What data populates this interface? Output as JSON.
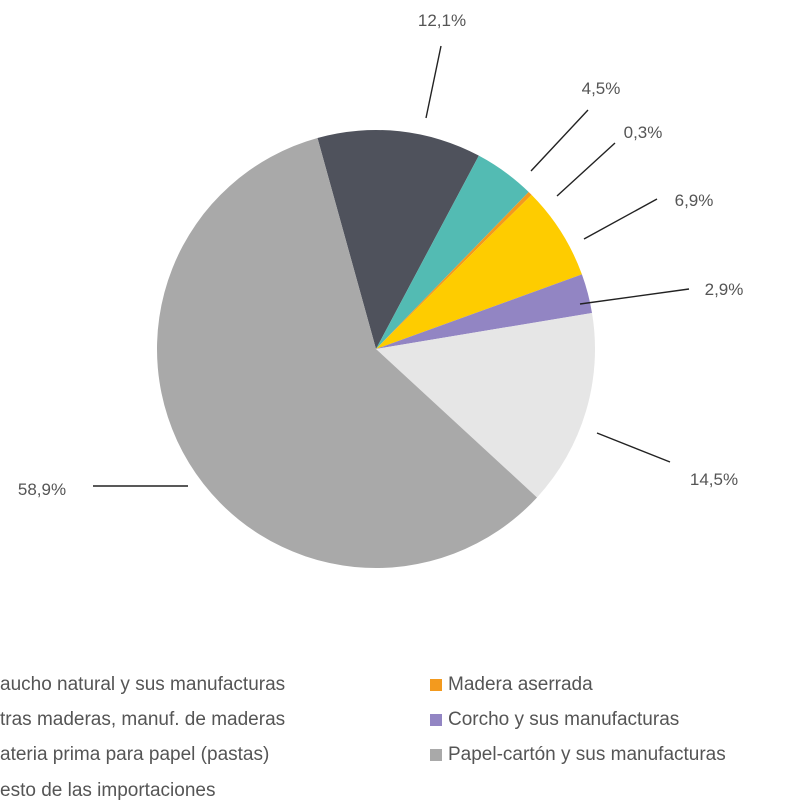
{
  "chart_data": {
    "type": "pie",
    "title": "",
    "slices": [
      {
        "name": "Caucho natural y sus manufacturas",
        "value": 12.1,
        "label": "12,1%",
        "color": "#4f525c"
      },
      {
        "name": "Otras maderas, manuf. de maderas",
        "value": 4.5,
        "label": "4,5%",
        "color": "#53bbb3"
      },
      {
        "name": "Madera aserrada",
        "value": 0.3,
        "label": "0,3%",
        "color": "#f39a1e"
      },
      {
        "name": "Materia prima para papel (pastas)",
        "value": 6.9,
        "label": "6,9%",
        "color": "#fecc00"
      },
      {
        "name": "Corcho y sus manufacturas",
        "value": 2.9,
        "label": "2,9%",
        "color": "#9285c3"
      },
      {
        "name": "Resto de las importaciones",
        "value": 14.5,
        "label": "14,5%",
        "color": "#e6e6e6"
      },
      {
        "name": "Papel-cartón y sus manufacturas",
        "value": 58.9,
        "label": "58,9%",
        "color": "#a9a9a9"
      }
    ],
    "legend": {
      "placement": "bottom",
      "entries": [
        {
          "text": "aucho natural y sus manufacturas",
          "color": "#4f525c"
        },
        {
          "text": "Madera aserrada",
          "color": "#f39a1e"
        },
        {
          "text": "tras maderas, manuf. de maderas",
          "color": "#53bbb3"
        },
        {
          "text": "Corcho y sus manufacturas",
          "color": "#9285c3"
        },
        {
          "text": "ateria prima para papel (pastas)",
          "color": "#fecc00"
        },
        {
          "text": "Papel-cartón y sus manufacturas",
          "color": "#a9a9a9"
        },
        {
          "text": "esto de las importaciones",
          "color": "#e6e6e6"
        }
      ]
    }
  }
}
